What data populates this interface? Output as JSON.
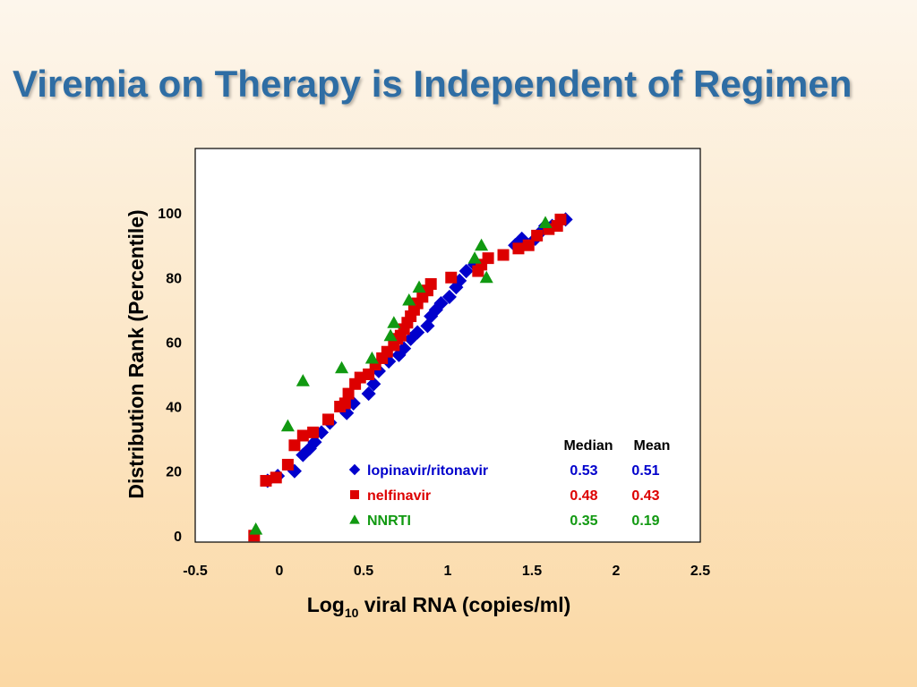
{
  "slide": {
    "title": "Viremia on Therapy is Independent of Regimen"
  },
  "chart_data": {
    "type": "scatter",
    "xlabel_main": "Log",
    "xlabel_sub": "10",
    "xlabel_rest": " viral RNA (copies/ml)",
    "ylabel": "Distribution Rank (Percentile)",
    "xlim": [
      -0.5,
      2.5
    ],
    "ylim": [
      -2,
      120
    ],
    "x_ticks": [
      -0.5,
      0,
      0.5,
      1,
      1.5,
      2,
      2.5
    ],
    "x_tick_labels": [
      "-0.5",
      "0",
      "0.5",
      "1",
      "1.5",
      "2",
      "2.5"
    ],
    "y_ticks": [
      0,
      20,
      40,
      60,
      80,
      100
    ],
    "y_tick_labels": [
      "0",
      "20",
      "40",
      "60",
      "80",
      "100"
    ],
    "grid": false,
    "legend": {
      "position": "lower-right",
      "header_median": "Median",
      "header_mean": "Mean"
    },
    "series": [
      {
        "name": "lopinavir/ritonavir",
        "color": "#0000cc",
        "marker": "diamond",
        "median": "0.53",
        "mean": "0.51",
        "points": [
          [
            -0.07,
            17
          ],
          [
            -0.01,
            18.5
          ],
          [
            0.09,
            20
          ],
          [
            0.14,
            25
          ],
          [
            0.18,
            27
          ],
          [
            0.21,
            29
          ],
          [
            0.25,
            32
          ],
          [
            0.3,
            35
          ],
          [
            0.4,
            38
          ],
          [
            0.44,
            41
          ],
          [
            0.53,
            44
          ],
          [
            0.56,
            47
          ],
          [
            0.59,
            51
          ],
          [
            0.65,
            54
          ],
          [
            0.71,
            56
          ],
          [
            0.74,
            58
          ],
          [
            0.78,
            61
          ],
          [
            0.82,
            63
          ],
          [
            0.88,
            65
          ],
          [
            0.9,
            68
          ],
          [
            0.93,
            70
          ],
          [
            0.96,
            72
          ],
          [
            1.01,
            74
          ],
          [
            1.05,
            77
          ],
          [
            1.07,
            79
          ],
          [
            1.11,
            82
          ],
          [
            1.16,
            84
          ],
          [
            1.4,
            90
          ],
          [
            1.44,
            92
          ],
          [
            1.52,
            92
          ],
          [
            1.55,
            94
          ],
          [
            1.58,
            96
          ],
          [
            1.62,
            96
          ],
          [
            1.7,
            98
          ]
        ]
      },
      {
        "name": "nelfinavir",
        "color": "#dd0000",
        "marker": "square",
        "median": "0.48",
        "mean": "0.43",
        "points": [
          [
            -0.15,
            0
          ],
          [
            -0.08,
            17
          ],
          [
            -0.02,
            18
          ],
          [
            0.05,
            22
          ],
          [
            0.09,
            28
          ],
          [
            0.14,
            31
          ],
          [
            0.2,
            32
          ],
          [
            0.29,
            36
          ],
          [
            0.36,
            40
          ],
          [
            0.39,
            41
          ],
          [
            0.41,
            44
          ],
          [
            0.45,
            47
          ],
          [
            0.48,
            49
          ],
          [
            0.53,
            50
          ],
          [
            0.57,
            53
          ],
          [
            0.61,
            55
          ],
          [
            0.64,
            57
          ],
          [
            0.68,
            59
          ],
          [
            0.7,
            61
          ],
          [
            0.72,
            62
          ],
          [
            0.74,
            64
          ],
          [
            0.76,
            66
          ],
          [
            0.78,
            68
          ],
          [
            0.8,
            70
          ],
          [
            0.82,
            72
          ],
          [
            0.85,
            74
          ],
          [
            0.88,
            76
          ],
          [
            0.9,
            78
          ],
          [
            1.02,
            80
          ],
          [
            1.18,
            82
          ],
          [
            1.2,
            84
          ],
          [
            1.24,
            86
          ],
          [
            1.33,
            87
          ],
          [
            1.42,
            89
          ],
          [
            1.48,
            90
          ],
          [
            1.53,
            93
          ],
          [
            1.6,
            95
          ],
          [
            1.65,
            96
          ],
          [
            1.67,
            98
          ]
        ]
      },
      {
        "name": "NNRTI",
        "color": "#119911",
        "marker": "triangle",
        "median": "0.35",
        "mean": "0.19",
        "points": [
          [
            -0.14,
            2
          ],
          [
            0.05,
            34
          ],
          [
            0.14,
            48
          ],
          [
            0.37,
            52
          ],
          [
            0.55,
            55
          ],
          [
            0.66,
            62
          ],
          [
            0.68,
            66
          ],
          [
            0.77,
            73
          ],
          [
            0.83,
            77
          ],
          [
            1.16,
            86
          ],
          [
            1.2,
            90
          ],
          [
            1.23,
            80
          ],
          [
            1.58,
            97
          ]
        ]
      }
    ]
  }
}
